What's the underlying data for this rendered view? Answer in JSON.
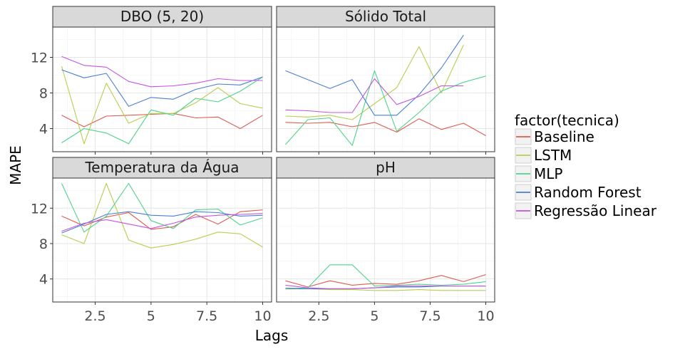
{
  "chart_data": {
    "type": "line",
    "xlabel": "Lags",
    "ylabel": "MAPE",
    "xlim": [
      0.6,
      10.4
    ],
    "ylim": [
      1.4,
      15.4
    ],
    "x_ticks": [
      2.5,
      5,
      7.5,
      10
    ],
    "x_tick_labels": [
      "2.5",
      "5",
      "7.5",
      "10"
    ],
    "y_ticks": [
      4,
      8,
      12
    ],
    "y_tick_labels": [
      "4",
      "8",
      "12"
    ],
    "grid": true,
    "legend": {
      "title": "factor(tecnica)",
      "position": "right",
      "entries": [
        {
          "name": "Baseline",
          "color": "#E05A4E"
        },
        {
          "name": "LSTM",
          "color": "#B5CF4E"
        },
        {
          "name": "MLP",
          "color": "#4ED38A"
        },
        {
          "name": "Random Forest",
          "color": "#4A7FD4"
        },
        {
          "name": "Regressão Linear",
          "color": "#C455E0"
        }
      ]
    },
    "panels": [
      {
        "title": "DBO (5, 20)",
        "series": [
          {
            "name": "Baseline",
            "x": [
              1,
              2,
              3,
              4,
              5,
              6,
              7,
              8,
              9,
              10
            ],
            "values": [
              5.5,
              4.2,
              5.4,
              5.5,
              5.6,
              5.7,
              5.2,
              5.3,
              4.0,
              5.5
            ]
          },
          {
            "name": "LSTM",
            "x": [
              1,
              2,
              3,
              4,
              5,
              6,
              7,
              8,
              9,
              10
            ],
            "values": [
              11.0,
              2.3,
              9.1,
              4.6,
              5.7,
              5.7,
              6.9,
              8.6,
              6.8,
              6.3
            ]
          },
          {
            "name": "MLP",
            "x": [
              1,
              2,
              3,
              4,
              5,
              6,
              7,
              8,
              9,
              10
            ],
            "values": [
              2.4,
              4.0,
              3.5,
              2.3,
              6.1,
              5.5,
              7.4,
              7.0,
              8.2,
              9.8
            ]
          },
          {
            "name": "Random Forest",
            "x": [
              1,
              2,
              3,
              4,
              5,
              6,
              7,
              8,
              9,
              10
            ],
            "values": [
              10.6,
              9.7,
              10.2,
              6.5,
              7.5,
              7.3,
              8.4,
              9.0,
              8.9,
              9.8
            ]
          },
          {
            "name": "Regressão Linear",
            "x": [
              1,
              2,
              3,
              4,
              5,
              6,
              7,
              8,
              9,
              10
            ],
            "values": [
              12.1,
              11.1,
              10.9,
              9.3,
              8.7,
              8.8,
              9.1,
              9.6,
              9.4,
              9.4
            ]
          }
        ]
      },
      {
        "title": "Sólido Total",
        "series": [
          {
            "name": "Baseline",
            "x": [
              1,
              2,
              3,
              4,
              5,
              6,
              7,
              8,
              9,
              10
            ],
            "values": [
              4.7,
              4.6,
              4.7,
              4.2,
              4.7,
              3.6,
              5.1,
              3.9,
              4.6,
              3.2
            ]
          },
          {
            "name": "LSTM",
            "x": [
              1,
              2,
              3,
              4,
              5,
              6,
              7,
              8,
              9
            ],
            "values": [
              5.4,
              5.3,
              5.5,
              5.0,
              6.8,
              8.6,
              13.2,
              8.0,
              13.4
            ]
          },
          {
            "name": "MLP",
            "x": [
              1,
              2,
              3,
              4,
              5,
              6,
              7,
              8,
              9,
              10
            ],
            "values": [
              2.2,
              5.0,
              5.2,
              2.1,
              10.5,
              3.7,
              5.8,
              8.2,
              9.2,
              9.9
            ]
          },
          {
            "name": "Random Forest",
            "x": [
              1,
              2,
              3,
              4,
              5,
              6,
              7,
              8,
              9
            ],
            "values": [
              10.5,
              9.5,
              8.5,
              9.5,
              5.5,
              5.5,
              7.8,
              10.8,
              14.5
            ]
          },
          {
            "name": "Regressão Linear",
            "x": [
              1,
              2,
              3,
              4,
              5,
              6,
              7,
              8,
              9
            ],
            "values": [
              6.1,
              6.0,
              5.8,
              5.8,
              9.6,
              6.7,
              7.6,
              8.8,
              8.8
            ]
          }
        ]
      },
      {
        "title": "Temperatura da Água",
        "series": [
          {
            "name": "Baseline",
            "x": [
              1,
              2,
              3,
              4,
              5,
              6,
              7,
              8,
              9,
              10
            ],
            "values": [
              11.1,
              10.0,
              11.0,
              11.5,
              9.6,
              9.9,
              11.3,
              10.2,
              11.6,
              11.8
            ]
          },
          {
            "name": "LSTM",
            "x": [
              1,
              2,
              3,
              4,
              5,
              6,
              7,
              8,
              9,
              10
            ],
            "values": [
              9.0,
              8.0,
              14.8,
              8.4,
              7.5,
              7.9,
              8.5,
              9.3,
              9.1,
              7.6
            ]
          },
          {
            "name": "MLP",
            "x": [
              1,
              2,
              3,
              4,
              5,
              6,
              7,
              8,
              9,
              10
            ],
            "values": [
              14.8,
              9.3,
              11.1,
              14.8,
              10.6,
              9.7,
              11.8,
              11.9,
              10.1,
              10.9
            ]
          },
          {
            "name": "Random Forest",
            "x": [
              1,
              2,
              3,
              4,
              5,
              6,
              7,
              8,
              9,
              10
            ],
            "values": [
              9.2,
              10.2,
              11.3,
              11.6,
              11.2,
              11.1,
              11.6,
              11.5,
              11.1,
              11.2
            ]
          },
          {
            "name": "Regressão Linear",
            "x": [
              1,
              2,
              3,
              4,
              5,
              6,
              7,
              8,
              9,
              10
            ],
            "values": [
              9.4,
              10.3,
              10.7,
              10.2,
              9.7,
              10.3,
              11.0,
              11.2,
              11.3,
              11.4
            ]
          }
        ]
      },
      {
        "title": "pH",
        "series": [
          {
            "name": "Baseline",
            "x": [
              1,
              2,
              3,
              4,
              5,
              6,
              7,
              8,
              9,
              10
            ],
            "values": [
              3.8,
              3.1,
              3.8,
              3.3,
              3.5,
              3.4,
              3.8,
              4.4,
              3.7,
              4.5
            ]
          },
          {
            "name": "LSTM",
            "x": [
              1,
              2,
              3,
              4,
              5,
              6,
              7,
              8,
              9,
              10
            ],
            "values": [
              3.0,
              2.9,
              2.8,
              2.8,
              2.7,
              2.7,
              2.8,
              2.7,
              2.7,
              2.7
            ]
          },
          {
            "name": "MLP",
            "x": [
              1,
              2,
              3,
              4,
              5,
              6,
              7,
              8,
              9,
              10
            ],
            "values": [
              2.9,
              3.0,
              5.6,
              5.6,
              3.2,
              3.3,
              3.4,
              3.3,
              3.4,
              3.7
            ]
          },
          {
            "name": "Random Forest",
            "x": [
              1,
              2,
              3,
              4,
              5,
              6,
              7,
              8,
              9,
              10
            ],
            "values": [
              2.9,
              2.9,
              2.9,
              2.9,
              3.0,
              3.1,
              3.1,
              3.2,
              3.2,
              3.2
            ]
          },
          {
            "name": "Regressão Linear",
            "x": [
              1,
              2,
              3,
              4,
              5,
              6,
              7,
              8,
              9,
              10
            ],
            "values": [
              3.3,
              3.0,
              2.9,
              2.9,
              3.0,
              3.2,
              3.2,
              3.2,
              3.2,
              3.2
            ]
          }
        ]
      }
    ]
  }
}
